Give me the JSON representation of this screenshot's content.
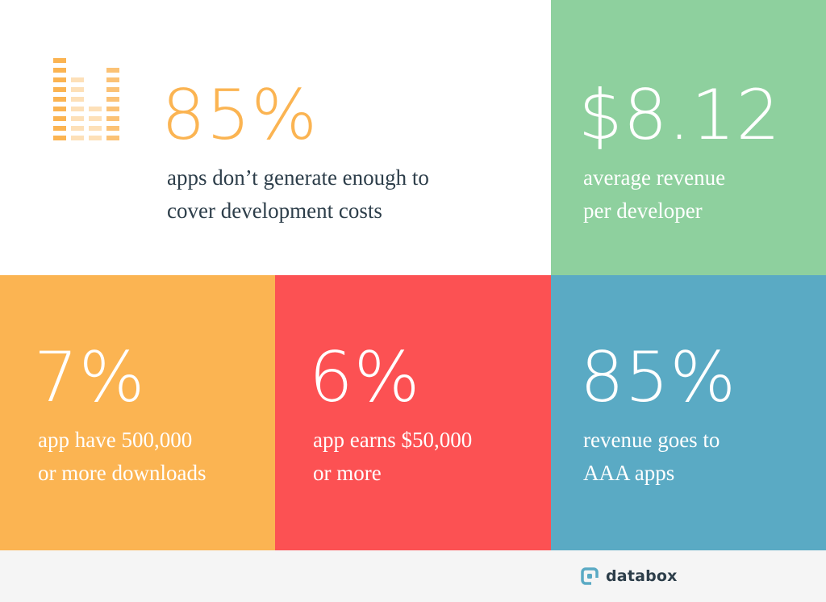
{
  "colors": {
    "orange": "#fbb452",
    "green": "#8ed09e",
    "red": "#fc5153",
    "blue": "#5aaac4",
    "dark_text": "#2d3e4a",
    "footer_bg": "#f5f5f5"
  },
  "stats": {
    "apps_cost": {
      "value": "85%",
      "line1": "apps don’t generate enough to",
      "line2": "cover development costs"
    },
    "avg_revenue": {
      "value": "$8.12",
      "line1": "average revenue",
      "line2": "per developer"
    },
    "downloads": {
      "value": "7%",
      "line1": "app have 500,000",
      "line2": "or more downloads"
    },
    "earnings": {
      "value": "6%",
      "line1": "app earns $50,000",
      "line2": "or more"
    },
    "aaa": {
      "value": "85%",
      "line1": "revenue goes to",
      "line2": "AAA apps"
    }
  },
  "icons": {
    "decoration": "bar-equalizer-icon",
    "brand": "databox-logo-icon"
  },
  "brand": {
    "name": "databox"
  }
}
